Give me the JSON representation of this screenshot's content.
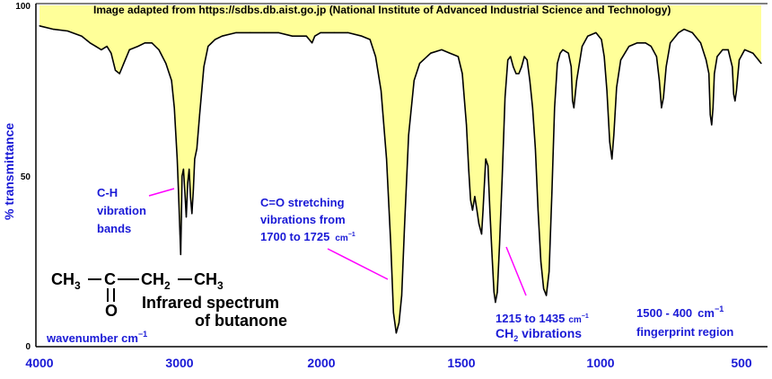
{
  "chart_data": {
    "type": "line",
    "title": "Infrared spectrum",
    "subtitle": "of butanone",
    "credit": "Image adapted from https://sdbs.db.aist.go.jp (National Institute of Advanced Industrial Science and Technology)",
    "ylabel": "% transmittance",
    "xlabel": "wavenumber  cm",
    "xlabel_sup": "−1",
    "x_reversed": true,
    "xlim": [
      4000,
      400
    ],
    "ylim": [
      0,
      100
    ],
    "x_ticks": [
      "4000",
      "3000",
      "2000",
      "1500",
      "1000",
      "500"
    ],
    "y_ticks": [
      "100",
      "50",
      "0"
    ],
    "fill_color": "#ffff99",
    "line_color": "#000000",
    "annotation_color": "#1a1ad6",
    "pointer_color": "#ff00ff",
    "molecule": {
      "left": "CH",
      "left_sub": "3",
      "center": "C",
      "right1": "CH",
      "right1_sub": "2",
      "right2": "CH",
      "right2_sub": "3",
      "carbonyl_o": "O"
    },
    "annotations": [
      {
        "lines": [
          "C-H",
          "vibration",
          "bands"
        ]
      },
      {
        "lines": [
          "C=O stretching",
          "vibrations from",
          "1700 to 1725"
        ],
        "unit": "cm",
        "unit_sup": "−1"
      },
      {
        "lines": [
          "1215 to 1435"
        ],
        "unit": "cm",
        "unit_sup": "−1",
        "line2": "CH",
        "line2_sub": "2",
        "line2_rest": " vibrations"
      },
      {
        "lines": [
          "1500 - 400"
        ],
        "unit": "cm",
        "unit_sup": "−1",
        "line2_full": "fingerprint region"
      }
    ],
    "series": [
      {
        "points": [
          [
            4000,
            94
          ],
          [
            3900,
            93
          ],
          [
            3800,
            92.5
          ],
          [
            3700,
            91
          ],
          [
            3640,
            89
          ],
          [
            3600,
            88
          ],
          [
            3560,
            87
          ],
          [
            3520,
            88
          ],
          [
            3490,
            86
          ],
          [
            3460,
            81
          ],
          [
            3430,
            80
          ],
          [
            3400,
            83
          ],
          [
            3360,
            87
          ],
          [
            3300,
            88
          ],
          [
            3250,
            89
          ],
          [
            3200,
            89
          ],
          [
            3150,
            87
          ],
          [
            3100,
            83
          ],
          [
            3060,
            78
          ],
          [
            3040,
            70
          ],
          [
            3020,
            55
          ],
          [
            3010,
            45
          ],
          [
            3000,
            33
          ],
          [
            2995,
            27
          ],
          [
            2990,
            38
          ],
          [
            2985,
            50
          ],
          [
            2975,
            52
          ],
          [
            2965,
            45
          ],
          [
            2955,
            38
          ],
          [
            2945,
            48
          ],
          [
            2935,
            52
          ],
          [
            2925,
            44
          ],
          [
            2915,
            39
          ],
          [
            2905,
            46
          ],
          [
            2895,
            55
          ],
          [
            2880,
            58
          ],
          [
            2860,
            68
          ],
          [
            2830,
            82
          ],
          [
            2800,
            88
          ],
          [
            2750,
            90
          ],
          [
            2700,
            91
          ],
          [
            2600,
            92
          ],
          [
            2500,
            92
          ],
          [
            2400,
            92
          ],
          [
            2300,
            92
          ],
          [
            2200,
            91
          ],
          [
            2100,
            91
          ],
          [
            2060,
            89
          ],
          [
            2040,
            91
          ],
          [
            2000,
            92
          ],
          [
            1950,
            92
          ],
          [
            1900,
            92
          ],
          [
            1850,
            91
          ],
          [
            1820,
            90
          ],
          [
            1800,
            85
          ],
          [
            1780,
            75
          ],
          [
            1760,
            55
          ],
          [
            1745,
            30
          ],
          [
            1735,
            10
          ],
          [
            1725,
            4
          ],
          [
            1715,
            7
          ],
          [
            1705,
            15
          ],
          [
            1695,
            35
          ],
          [
            1680,
            62
          ],
          [
            1660,
            78
          ],
          [
            1640,
            83
          ],
          [
            1600,
            86
          ],
          [
            1560,
            87
          ],
          [
            1530,
            86
          ],
          [
            1500,
            85
          ],
          [
            1485,
            80
          ],
          [
            1470,
            65
          ],
          [
            1462,
            52
          ],
          [
            1455,
            43
          ],
          [
            1448,
            40
          ],
          [
            1440,
            44
          ],
          [
            1432,
            40
          ],
          [
            1425,
            36
          ],
          [
            1415,
            33
          ],
          [
            1410,
            40
          ],
          [
            1400,
            55
          ],
          [
            1392,
            53
          ],
          [
            1385,
            40
          ],
          [
            1378,
            28
          ],
          [
            1370,
            16
          ],
          [
            1365,
            13
          ],
          [
            1358,
            16
          ],
          [
            1350,
            30
          ],
          [
            1340,
            50
          ],
          [
            1330,
            73
          ],
          [
            1320,
            84
          ],
          [
            1310,
            85
          ],
          [
            1300,
            82
          ],
          [
            1290,
            80
          ],
          [
            1280,
            80
          ],
          [
            1270,
            82
          ],
          [
            1260,
            85
          ],
          [
            1250,
            84
          ],
          [
            1240,
            78
          ],
          [
            1230,
            70
          ],
          [
            1220,
            58
          ],
          [
            1210,
            40
          ],
          [
            1200,
            25
          ],
          [
            1190,
            17
          ],
          [
            1180,
            15
          ],
          [
            1170,
            22
          ],
          [
            1160,
            45
          ],
          [
            1150,
            70
          ],
          [
            1140,
            83
          ],
          [
            1130,
            86
          ],
          [
            1120,
            87
          ],
          [
            1100,
            86
          ],
          [
            1090,
            82
          ],
          [
            1085,
            72
          ],
          [
            1080,
            70
          ],
          [
            1070,
            78
          ],
          [
            1050,
            88
          ],
          [
            1030,
            91
          ],
          [
            1000,
            92
          ],
          [
            980,
            90
          ],
          [
            970,
            85
          ],
          [
            960,
            75
          ],
          [
            950,
            60
          ],
          [
            942,
            55
          ],
          [
            935,
            62
          ],
          [
            925,
            76
          ],
          [
            910,
            84
          ],
          [
            880,
            88
          ],
          [
            850,
            89
          ],
          [
            820,
            89
          ],
          [
            800,
            88
          ],
          [
            780,
            85
          ],
          [
            770,
            78
          ],
          [
            762,
            70
          ],
          [
            755,
            73
          ],
          [
            745,
            82
          ],
          [
            730,
            89
          ],
          [
            700,
            92
          ],
          [
            680,
            93
          ],
          [
            650,
            92
          ],
          [
            620,
            89
          ],
          [
            600,
            84
          ],
          [
            590,
            80
          ],
          [
            585,
            68
          ],
          [
            580,
            65
          ],
          [
            575,
            70
          ],
          [
            570,
            80
          ],
          [
            560,
            85
          ],
          [
            540,
            87
          ],
          [
            520,
            87
          ],
          [
            505,
            82
          ],
          [
            500,
            74
          ],
          [
            495,
            72
          ],
          [
            490,
            75
          ],
          [
            480,
            84
          ],
          [
            460,
            87
          ],
          [
            430,
            86
          ],
          [
            410,
            84
          ],
          [
            400,
            83
          ]
        ]
      }
    ]
  }
}
